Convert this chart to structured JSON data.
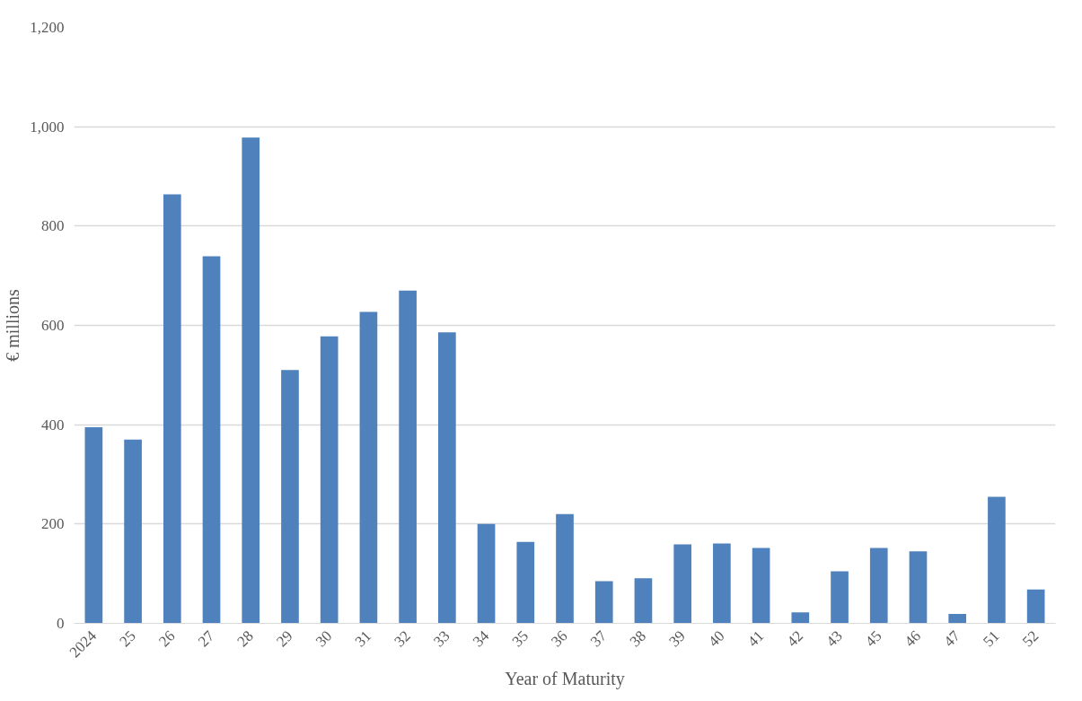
{
  "chart_data": {
    "type": "bar",
    "xlabel": "Year of Maturity",
    "ylabel": "€ millions",
    "categories": [
      "2024",
      "25",
      "26",
      "27",
      "28",
      "29",
      "30",
      "31",
      "32",
      "33",
      "34",
      "35",
      "36",
      "37",
      "38",
      "39",
      "40",
      "41",
      "42",
      "43",
      "45",
      "46",
      "47",
      "51",
      "52"
    ],
    "values": [
      395,
      370,
      864,
      739,
      978,
      510,
      578,
      627,
      670,
      586,
      200,
      164,
      220,
      85,
      91,
      159,
      161,
      152,
      22,
      105,
      152,
      145,
      19,
      255,
      68
    ],
    "color": "#4f81bd",
    "ylim": [
      0,
      1200
    ],
    "yticks": [
      {
        "value": 0,
        "label": "0"
      },
      {
        "value": 200,
        "label": "200"
      },
      {
        "value": 400,
        "label": "400"
      },
      {
        "value": 600,
        "label": "600"
      },
      {
        "value": 800,
        "label": "800"
      },
      {
        "value": 1000,
        "label": "1,000"
      },
      {
        "value": 1200,
        "label": "1,200"
      }
    ],
    "grid": "y"
  }
}
